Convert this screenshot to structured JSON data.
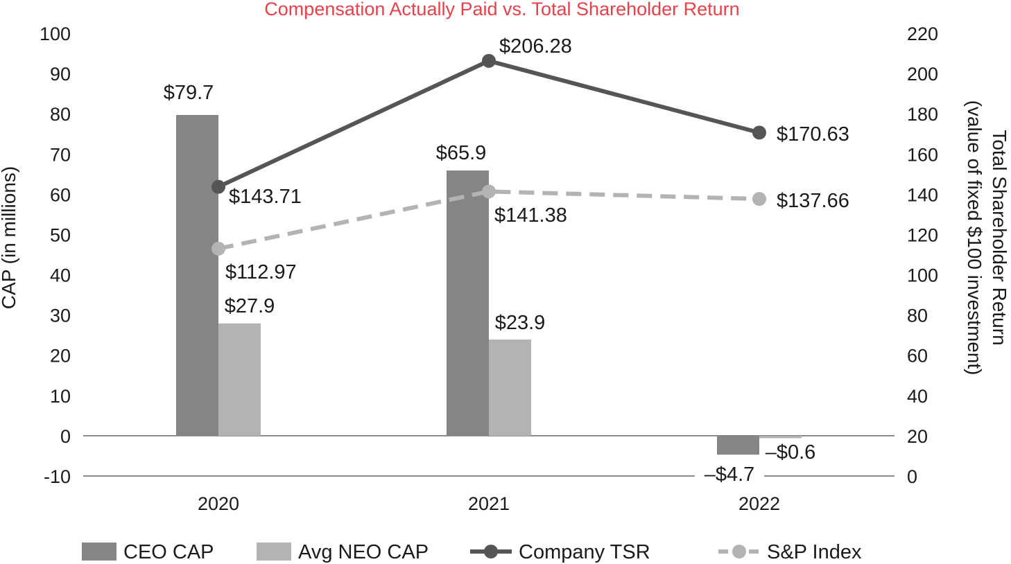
{
  "chart_data": {
    "type": "bar+line",
    "title": "Compensation Actually Paid vs. Total Shareholder Return",
    "title_color": "#e8414b",
    "categories": [
      "2020",
      "2021",
      "2022"
    ],
    "ylabel": "CAP (in millions)",
    "y2label_line1": "Total Shareholder Return",
    "y2label_line2": "(value of fixed $100 investment)",
    "ylim": [
      -10,
      100
    ],
    "y2lim": [
      0,
      220
    ],
    "yticks": [
      "100",
      "90",
      "80",
      "70",
      "60",
      "50",
      "40",
      "30",
      "20",
      "10",
      "0",
      "-10"
    ],
    "y2ticks": [
      "220",
      "200",
      "180",
      "160",
      "140",
      "120",
      "100",
      "80",
      "60",
      "40",
      "20",
      "0"
    ],
    "bar_series": [
      {
        "name": "CEO CAP",
        "color": "#858585",
        "values": [
          79.7,
          65.9,
          -4.7
        ],
        "labels": [
          "$79.7",
          "$65.9",
          "–$4.7"
        ]
      },
      {
        "name": "Avg NEO CAP",
        "color": "#b3b3b3",
        "values": [
          27.9,
          23.9,
          -0.6
        ],
        "labels": [
          "$27.9",
          "$23.9",
          "–$0.6"
        ]
      }
    ],
    "line_series": [
      {
        "name": "Company TSR",
        "color": "#555555",
        "style": "solid",
        "values": [
          143.71,
          206.28,
          170.63
        ],
        "labels": [
          "$143.71",
          "$206.28",
          "$170.63"
        ]
      },
      {
        "name": "S&P Index",
        "color": "#b3b3b3",
        "style": "dashed",
        "values": [
          112.97,
          141.38,
          137.66
        ],
        "labels": [
          "$112.97",
          "$141.38",
          "$137.66"
        ]
      }
    ],
    "legend_position": "bottom"
  }
}
